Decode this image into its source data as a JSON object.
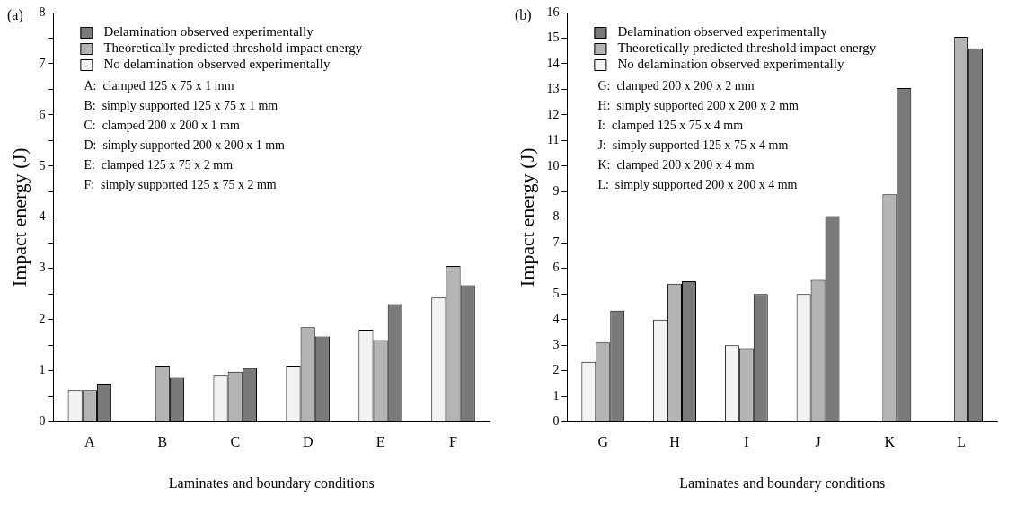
{
  "chart_data": [
    {
      "type": "bar",
      "title": "(a)",
      "xlabel": "Laminates and boundary conditions",
      "ylabel": "Impact energy (J)",
      "categories": [
        "A",
        "B",
        "C",
        "D",
        "E",
        "F"
      ],
      "series": [
        {
          "name": "No delamination observed experimentally",
          "color": "#f2f2f2",
          "values": [
            0.62,
            null,
            0.92,
            1.1,
            1.8,
            2.43
          ]
        },
        {
          "name": "Theoretically predicted threshold impact energy",
          "color": "#b4b4b4",
          "values": [
            0.62,
            1.1,
            0.98,
            1.85,
            1.6,
            3.05
          ]
        },
        {
          "name": "Delamination observed experimentally",
          "color": "#7a7a7a",
          "values": [
            0.75,
            0.86,
            1.05,
            1.67,
            2.3,
            2.67
          ]
        }
      ],
      "ylim": [
        0,
        8
      ],
      "yticks": [
        0,
        {
          "value": 0.5,
          "label": null
        },
        1,
        {
          "value": 1.5,
          "label": null
        },
        2,
        {
          "value": 2.5,
          "label": null
        },
        3,
        {
          "value": 3.5,
          "label": null
        },
        4,
        {
          "value": 4.5,
          "label": null
        },
        5,
        {
          "value": 5.5,
          "label": null
        },
        6,
        {
          "value": 6.5,
          "label": null
        },
        7,
        {
          "value": 7.5,
          "label": null
        },
        8
      ],
      "grid": false,
      "legend": "top left",
      "annotations": [
        "A:  clamped 125 x 75 x 1 mm",
        "B:  simply supported 125 x 75 x 1 mm",
        "C:  clamped 200 x 200 x 1 mm",
        "D:  simply supported 200 x 200 x 1 mm",
        "E:  clamped 125 x 75 x 2 mm",
        "F:  simply supported 125 x 75 x 2 mm"
      ]
    },
    {
      "type": "bar",
      "title": "(b)",
      "xlabel": "Laminates and boundary conditions",
      "ylabel": "Impact energy (J)",
      "categories": [
        "G",
        "H",
        "I",
        "J",
        "K",
        "L"
      ],
      "series": [
        {
          "name": "No delamination observed experimentally",
          "color": "#f2f2f2",
          "values": [
            2.35,
            4.0,
            3.0,
            5.0,
            null,
            null
          ]
        },
        {
          "name": "Theoretically predicted threshold impact energy",
          "color": "#b4b4b4",
          "values": [
            3.1,
            5.4,
            2.88,
            5.55,
            8.9,
            15.05
          ]
        },
        {
          "name": "Delamination observed experimentally",
          "color": "#7a7a7a",
          "values": [
            4.35,
            5.5,
            5.0,
            8.05,
            13.05,
            14.6
          ]
        }
      ],
      "ylim": [
        0,
        16
      ],
      "yticks": [
        0,
        1,
        2,
        3,
        4,
        5,
        6,
        7,
        8,
        9,
        10,
        11,
        12,
        13,
        14,
        15,
        16
      ],
      "grid": false,
      "legend": "top left",
      "annotations": [
        "G:  clamped 200 x 200 x 2 mm",
        "H:  simply supported 200 x 200 x 2 mm",
        "I:  clamped 125 x 75 x 4 mm",
        "J:  simply supported 125 x 75 x 4 mm",
        "K:  clamped 200 x 200 x 4 mm",
        "L:  simply supported 200 x 200 x 4 mm"
      ]
    }
  ]
}
